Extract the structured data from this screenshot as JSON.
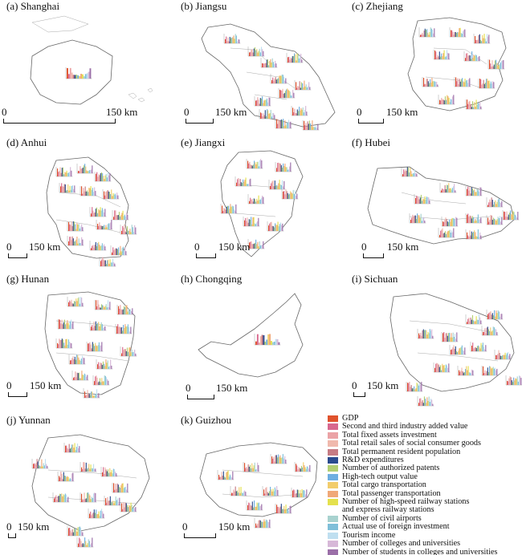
{
  "panels": [
    {
      "id": "a",
      "title": "(a) Shanghai",
      "scale_zero": "0",
      "scale_label": "150 km"
    },
    {
      "id": "b",
      "title": "(b) Jiangsu",
      "scale_zero": "0",
      "scale_label": "150 km"
    },
    {
      "id": "c",
      "title": "(c) Zhejiang",
      "scale_zero": "0",
      "scale_label": "150 km"
    },
    {
      "id": "d",
      "title": "(d) Anhui",
      "scale_zero": "0",
      "scale_label": "150 km"
    },
    {
      "id": "e",
      "title": "(e) Jiangxi",
      "scale_zero": "0",
      "scale_label": "150 km"
    },
    {
      "id": "f",
      "title": "(f) Hubei",
      "scale_zero": "0",
      "scale_label": "150 km"
    },
    {
      "id": "g",
      "title": "(g) Hunan",
      "scale_zero": "0",
      "scale_label": "150 km"
    },
    {
      "id": "h",
      "title": "(h) Chongqing",
      "scale_zero": "0",
      "scale_label": "150 km"
    },
    {
      "id": "i",
      "title": "(i) Sichuan",
      "scale_zero": "0",
      "scale_label": "150 km"
    },
    {
      "id": "j",
      "title": "(j) Yunnan",
      "scale_zero": "0",
      "scale_label": "150 km"
    },
    {
      "id": "k",
      "title": "(k) Guizhou",
      "scale_zero": "0",
      "scale_label": "150 km"
    }
  ],
  "legend": [
    {
      "label": "GDP",
      "color": "#e0522c"
    },
    {
      "label": "Second and third industry added value",
      "color": "#d8678e"
    },
    {
      "label": "Total fixed assets investment",
      "color": "#eba3a6"
    },
    {
      "label": "Total retail sales of social consumer goods",
      "color": "#f0b9ad"
    },
    {
      "label": "Total permanent resident population",
      "color": "#c67b83"
    },
    {
      "label": "R&D expenditures",
      "color": "#2a4b8f"
    },
    {
      "label": "Number of authorized patents",
      "color": "#b3cf73"
    },
    {
      "label": "High-tech output value",
      "color": "#6eaee0"
    },
    {
      "label": "Total cargo transportation",
      "color": "#f2cd6c"
    },
    {
      "label": "Total passenger transportation",
      "color": "#f0a878"
    },
    {
      "label": "Number of high-speed railway stations\nand express railway stations",
      "color": "#e4e14d"
    },
    {
      "label": "Number of civil airports",
      "color": "#a8d2cf"
    },
    {
      "label": "Actual use of foreign investment",
      "color": "#7fbfd9"
    },
    {
      "label": "Tourism income",
      "color": "#bfdff0"
    },
    {
      "label": "Number of colleges and universities",
      "color": "#d7b8d8"
    },
    {
      "label": "Number of students in colleges and universities",
      "color": "#9b6fa8"
    }
  ]
}
